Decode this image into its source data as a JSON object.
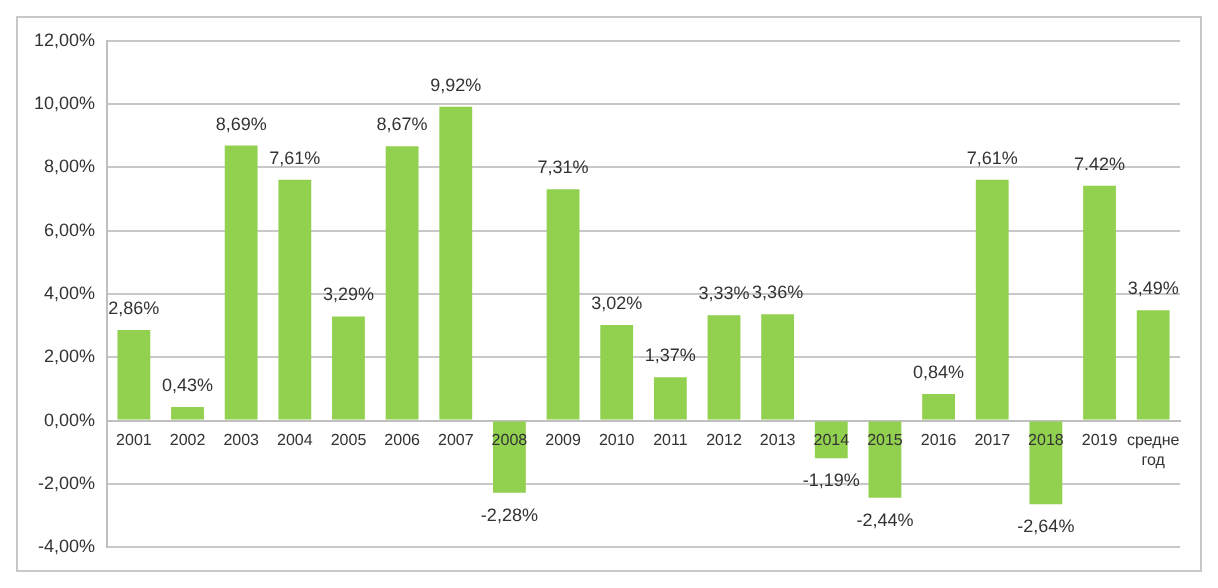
{
  "chart_data": {
    "type": "bar",
    "categories": [
      "2001",
      "2002",
      "2003",
      "2004",
      "2005",
      "2006",
      "2007",
      "2008",
      "2009",
      "2010",
      "2011",
      "2012",
      "2013",
      "2014",
      "2015",
      "2016",
      "2017",
      "2018",
      "2019",
      "средне год"
    ],
    "values": [
      2.86,
      0.43,
      8.69,
      7.61,
      3.29,
      8.67,
      9.92,
      -2.28,
      7.31,
      3.02,
      1.37,
      3.33,
      3.36,
      -1.19,
      -2.44,
      0.84,
      7.61,
      -2.64,
      7.42,
      3.49
    ],
    "value_labels": [
      "2,86%",
      "0,43%",
      "8,69%",
      "7,61%",
      "3,29%",
      "8,67%",
      "9,92%",
      "-2,28%",
      "7,31%",
      "3,02%",
      "1,37%",
      "3,33%",
      "3,36%",
      "-1,19%",
      "-2,44%",
      "0,84%",
      "7,61%",
      "-2,64%",
      "7.42%",
      "3,49%"
    ],
    "color": "#92d050",
    "ylim": [
      -4,
      12
    ],
    "yticks": [
      {
        "value": -4,
        "label": "-4,00%"
      },
      {
        "value": -2,
        "label": "-2,00%"
      },
      {
        "value": 0,
        "label": "0,00%"
      },
      {
        "value": 2,
        "label": "2,00%"
      },
      {
        "value": 4,
        "label": "4,00%"
      },
      {
        "value": 6,
        "label": "6,00%"
      },
      {
        "value": 8,
        "label": "8,00%"
      },
      {
        "value": 10,
        "label": "10,00%"
      },
      {
        "value": 12,
        "label": "12,00%"
      }
    ],
    "grid": "y",
    "legend": false
  }
}
